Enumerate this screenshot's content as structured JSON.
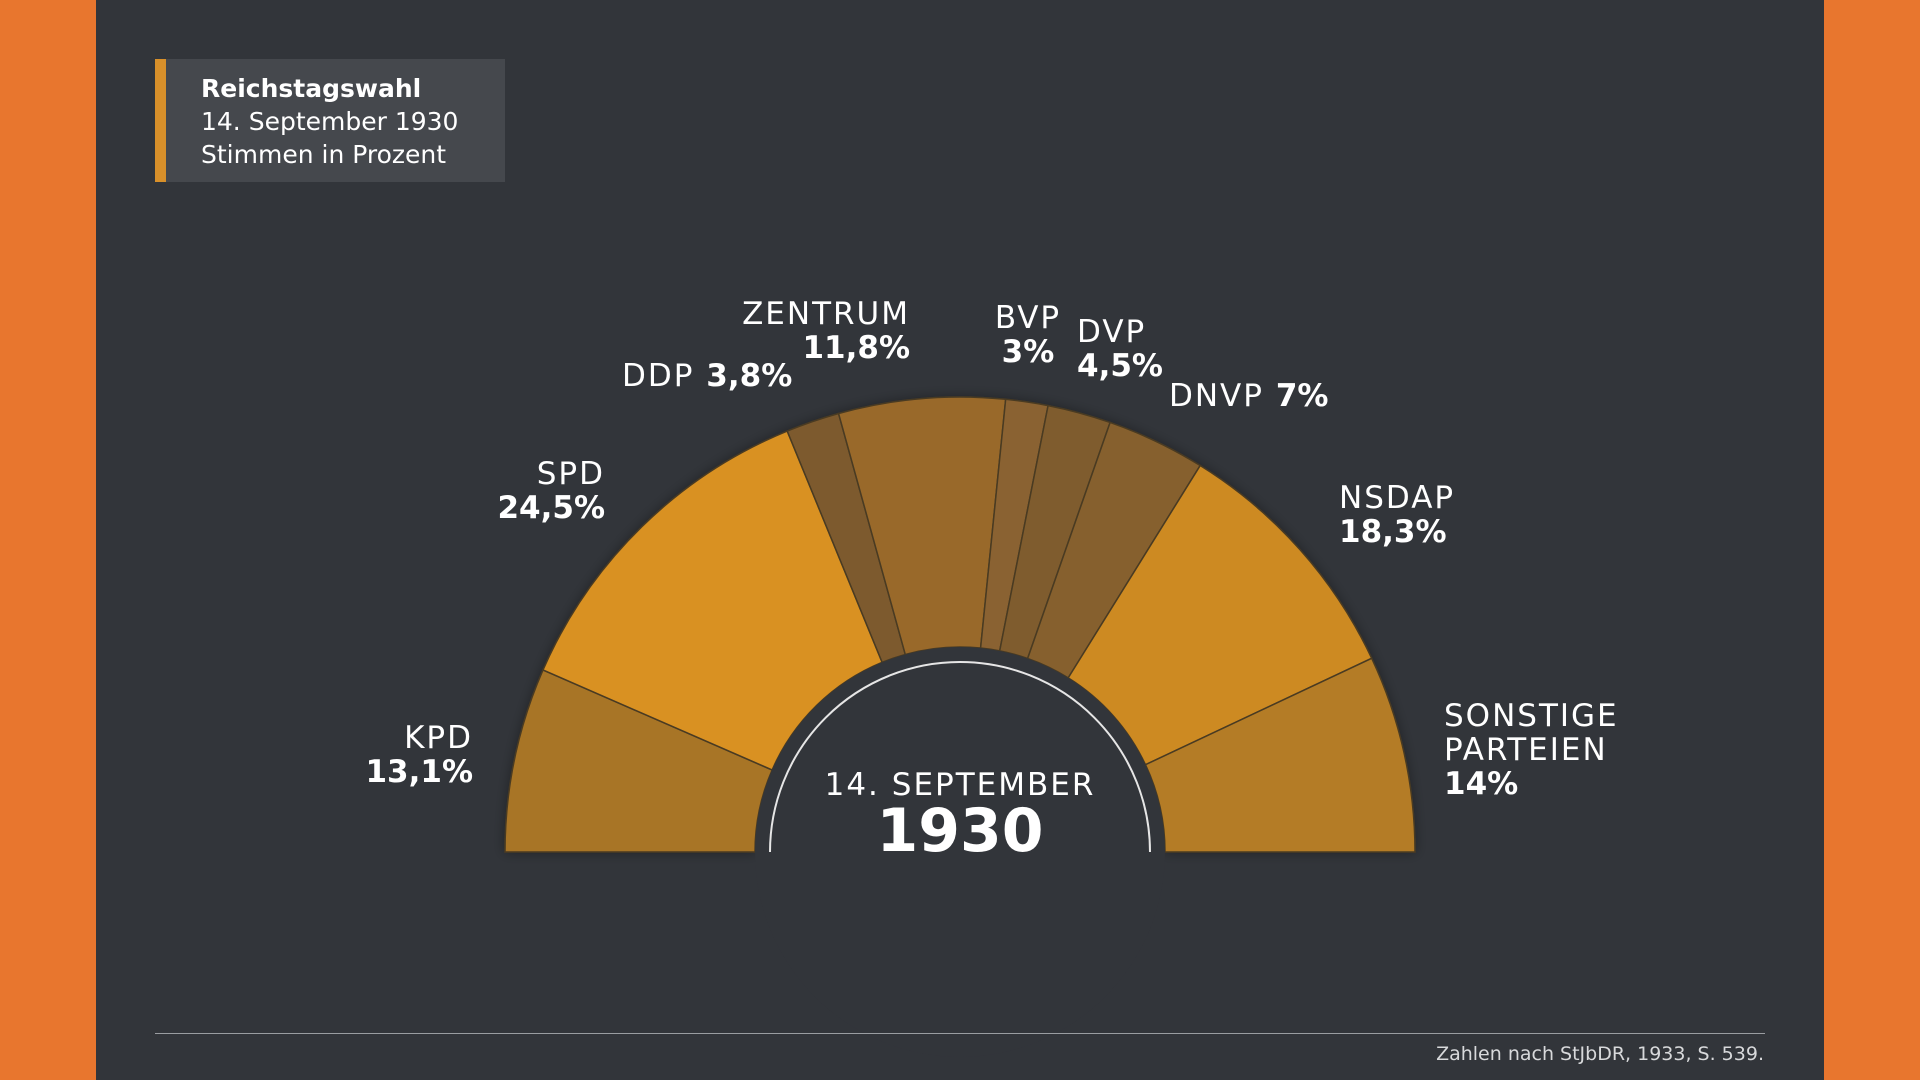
{
  "title_box": {
    "line1": "Reichstagswahl",
    "line2": "14. September 1930",
    "line3": "Stimmen in Prozent"
  },
  "chart_data": {
    "type": "pie",
    "variant": "semicircle-parliament",
    "title": "Reichstagswahl 14. September 1930 – Stimmen in Prozent",
    "center_label": {
      "line1": "14. SEPTEMBER",
      "line2": "1930"
    },
    "series": [
      {
        "name": "KPD",
        "value": 13.1,
        "label": "13,1%",
        "color": "#A87427"
      },
      {
        "name": "SPD",
        "value": 24.5,
        "label": "24,5%",
        "color": "#D99124"
      },
      {
        "name": "DDP",
        "value": 3.8,
        "label": "3,8%",
        "color": "#7D5A2E"
      },
      {
        "name": "ZENTRUM",
        "value": 11.8,
        "label": "11,8%",
        "color": "#99692C"
      },
      {
        "name": "BVP",
        "value": 3,
        "label": "3%",
        "color": "#8A6230"
      },
      {
        "name": "DVP",
        "value": 4.5,
        "label": "4,5%",
        "color": "#7F5B2D"
      },
      {
        "name": "DNVP",
        "value": 7,
        "label": "7%",
        "color": "#86602D"
      },
      {
        "name": "NSDAP",
        "value": 18.3,
        "label": "18,3%",
        "color": "#CD8A23"
      },
      {
        "name": "SONSTIGE PARTEIEN",
        "name_lines": [
          "SONSTIGE",
          "PARTEIEN"
        ],
        "value": 14,
        "label": "14%",
        "color": "#B47C25"
      }
    ]
  },
  "footer": {
    "source": "Zahlen nach StJbDR, 1933, S. 539."
  },
  "colors": {
    "background": "#E8762E",
    "panel": "#32353A",
    "accent": "#D8902A"
  }
}
